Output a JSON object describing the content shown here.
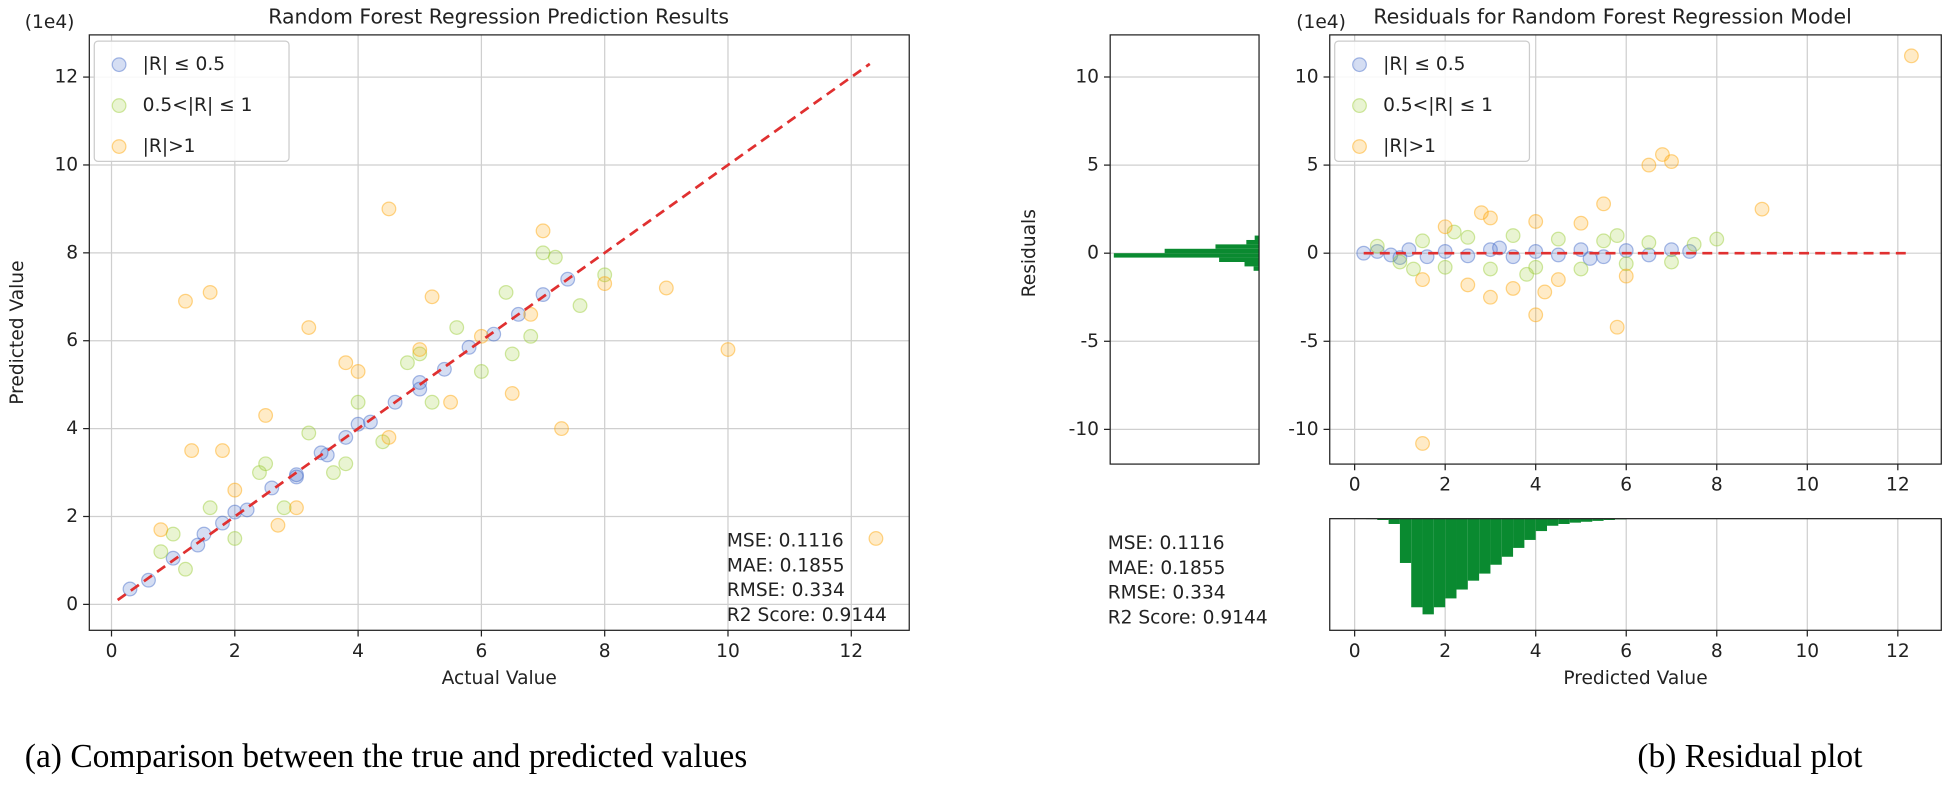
{
  "chart_data": [
    {
      "type": "scatter",
      "title": "Random Forest Regression Prediction Results",
      "x_label": "Actual Value",
      "y_label": "Predicted Value",
      "offset_label": "(1e4)",
      "xlim": [
        -0.36,
        12.94
      ],
      "ylim": [
        -0.59,
        12.96
      ],
      "xticks": [
        0,
        2,
        4,
        6,
        8,
        10,
        12
      ],
      "yticks": [
        0,
        2,
        4,
        6,
        8,
        10,
        12
      ],
      "grid": true,
      "legend": "upper left",
      "series": [
        {
          "name": "|R| ≤ 0.5",
          "color": "#4169c8",
          "x": [
            0.3,
            0.6,
            1,
            1.4,
            1.8,
            2.2,
            2.6,
            3,
            3.4,
            3.8,
            4.2,
            4.6,
            5,
            5.4,
            5.8,
            6.2,
            6.6,
            7,
            7.4,
            2,
            3,
            4,
            5,
            1.5,
            3.5
          ],
          "y": [
            0.35,
            0.55,
            1.05,
            1.35,
            1.85,
            2.15,
            2.65,
            2.95,
            3.45,
            3.8,
            4.15,
            4.6,
            5.05,
            5.35,
            5.85,
            6.15,
            6.6,
            7.05,
            7.4,
            2.1,
            2.9,
            4.1,
            4.9,
            1.6,
            3.4
          ]
        },
        {
          "name": "0.5<|R| ≤ 1",
          "color": "#9acd32",
          "x": [
            0.8,
            1.2,
            1.6,
            2,
            2.4,
            2.8,
            3.2,
            3.6,
            4,
            4.4,
            4.8,
            5.2,
            5.6,
            6,
            6.4,
            6.8,
            7.2,
            7.6,
            8,
            1,
            2.5,
            3.8,
            5,
            6.5,
            7
          ],
          "y": [
            1.2,
            0.8,
            2.2,
            1.5,
            3,
            2.2,
            3.9,
            3,
            4.6,
            3.7,
            5.5,
            4.6,
            6.3,
            5.3,
            7.1,
            6.1,
            7.9,
            6.8,
            7.5,
            1.6,
            3.2,
            3.2,
            5.7,
            5.7,
            8
          ]
        },
        {
          "name": "|R|>1",
          "color": "#ffa500",
          "x": [
            1.2,
            1.6,
            1.8,
            2.5,
            3.2,
            3.8,
            4.5,
            5.2,
            6,
            6.5,
            7,
            7.3,
            8,
            9,
            10,
            12.4,
            0.8,
            2,
            3,
            4,
            5.5,
            6.8,
            1.3,
            2.7,
            5,
            4.5
          ],
          "y": [
            6.9,
            7.1,
            3.5,
            4.3,
            6.3,
            5.5,
            3.8,
            7,
            6.1,
            4.8,
            8.5,
            4,
            7.3,
            7.2,
            5.8,
            1.5,
            1.7,
            2.6,
            2.2,
            5.3,
            4.6,
            6.6,
            3.5,
            1.8,
            5.8,
            9
          ]
        }
      ],
      "reference_line": {
        "color": "#e03030",
        "x": [
          0.1,
          12.3
        ],
        "y": [
          0.1,
          12.3
        ]
      },
      "metrics": [
        "MSE: 0.1116",
        "MAE: 0.1855",
        "RMSE: 0.334",
        "R2 Score: 0.9144"
      ],
      "caption": "(a) Comparison between the true and predicted values"
    },
    {
      "type": "scatter",
      "title": "Residuals for Random Forest Regression Model",
      "x_label": "Predicted Value",
      "y_label": "Residuals",
      "offset_label": "(1e4)",
      "xlim": [
        -0.55,
        12.96
      ],
      "ylim": [
        -11.97,
        12.39
      ],
      "xticks": [
        0,
        2,
        4,
        6,
        8,
        10,
        12
      ],
      "yticks": [
        -10,
        -5,
        0,
        5,
        10
      ],
      "grid": true,
      "legend": "upper left",
      "series": [
        {
          "name": "|R| ≤ 0.5",
          "color": "#4169c8",
          "x": [
            0.2,
            0.5,
            0.8,
            1.2,
            1.6,
            2,
            2.5,
            3,
            3.5,
            4,
            4.5,
            5,
            5.5,
            6,
            6.5,
            7,
            7.4,
            1,
            3.2,
            5.2
          ],
          "y": [
            0,
            0.1,
            -0.1,
            0.2,
            -0.2,
            0.1,
            -0.15,
            0.2,
            -0.2,
            0.1,
            -0.1,
            0.2,
            -0.2,
            0.15,
            -0.1,
            0.2,
            0.1,
            -0.25,
            0.3,
            -0.3
          ]
        },
        {
          "name": "0.5<|R| ≤ 1",
          "color": "#9acd32",
          "x": [
            0.5,
            1,
            1.5,
            2,
            2.5,
            3,
            3.5,
            4,
            4.5,
            5,
            5.5,
            6,
            6.5,
            7,
            7.5,
            8,
            2.2,
            3.8,
            5.8,
            1.3
          ],
          "y": [
            0.4,
            -0.5,
            0.7,
            -0.8,
            0.9,
            -0.9,
            1,
            -0.8,
            0.8,
            -0.9,
            0.7,
            -0.6,
            0.6,
            -0.5,
            0.5,
            0.8,
            1.2,
            -1.2,
            1,
            -0.9
          ]
        },
        {
          "name": "|R|>1",
          "color": "#ffa500",
          "x": [
            1.5,
            2,
            2.5,
            3,
            3.5,
            4,
            4.5,
            5,
            5.5,
            6,
            6.5,
            6.8,
            7,
            9,
            12.3,
            1.5,
            5.8,
            4,
            3,
            2.8,
            4.2
          ],
          "y": [
            -1.5,
            1.5,
            -1.8,
            2,
            -2,
            1.8,
            -1.5,
            1.7,
            2.8,
            -1.3,
            5,
            5.6,
            5.2,
            2.5,
            11.2,
            -10.8,
            -4.2,
            -3.5,
            -2.5,
            2.3,
            -2.2
          ]
        }
      ],
      "reference_line": {
        "color": "#e03030",
        "x": [
          0.2,
          12.3
        ],
        "y": [
          0,
          0
        ]
      },
      "x_histogram": {
        "color": "#0a8a30",
        "ylim": [
          0,
          1260
        ],
        "bins": [
          0.25,
          0.5,
          0.75,
          1,
          1.25,
          1.5,
          1.75,
          2,
          2.25,
          2.5,
          2.75,
          3,
          3.25,
          3.5,
          3.75,
          4,
          4.25,
          4.5,
          4.75,
          5,
          5.25,
          5.5,
          5.75,
          6
        ],
        "counts": [
          5,
          15,
          60,
          500,
          1000,
          1080,
          1000,
          900,
          800,
          700,
          620,
          520,
          430,
          330,
          240,
          140,
          80,
          60,
          45,
          35,
          25,
          15,
          8
        ]
      },
      "y_histogram": {
        "color": "#0a8a30",
        "xlim": [
          0,
          4100
        ],
        "bins": [
          -1,
          -0.75,
          -0.5,
          -0.25,
          0,
          0.25,
          0.5,
          0.75,
          1
        ],
        "counts": [
          150,
          400,
          1100,
          4000,
          2600,
          1200,
          350,
          120
        ]
      },
      "metrics": [
        "MSE: 0.1116",
        "MAE: 0.1855",
        "RMSE: 0.334",
        "R2 Score: 0.9144"
      ],
      "caption": "(b) Residual plot"
    }
  ]
}
